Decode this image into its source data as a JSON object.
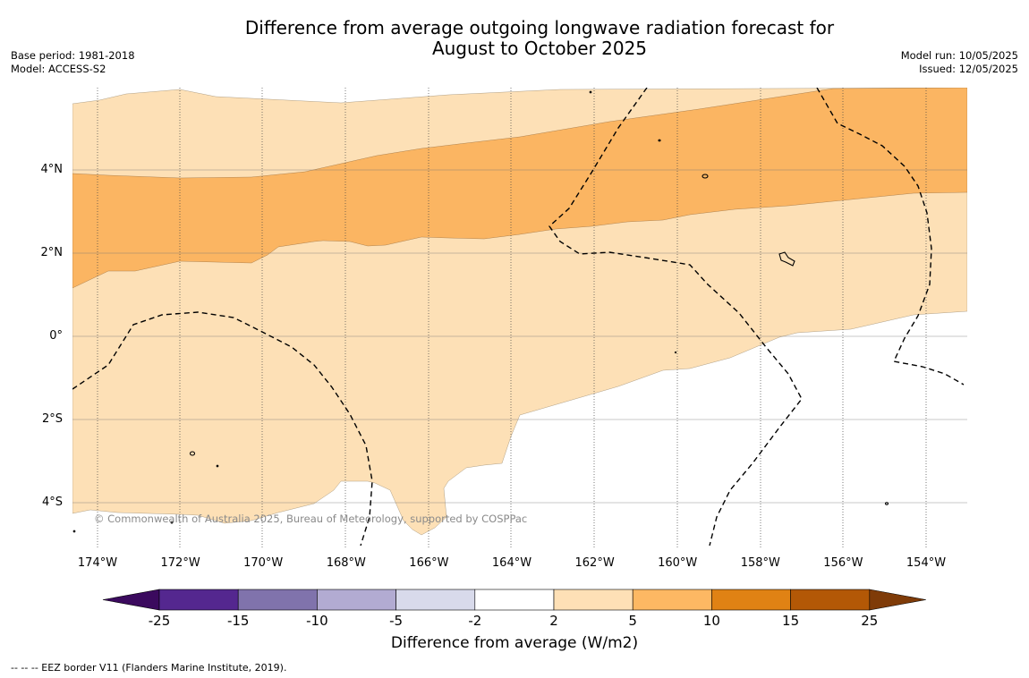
{
  "header": {
    "title_line1": "Difference from average outgoing longwave radiation forecast for",
    "title_line2": "August to October 2025",
    "base_period": "Base period: 1981-2018",
    "model": "Model: ACCESS-S2",
    "model_run": "Model run: 10/05/2025",
    "issued": "Issued: 12/05/2025"
  },
  "map": {
    "lat_labels": [
      "4°N",
      "2°N",
      "0°",
      "2°S",
      "4°S"
    ],
    "lon_labels": [
      "174°W",
      "172°W",
      "170°W",
      "168°W",
      "166°W",
      "164°W",
      "162°W",
      "160°W",
      "158°W",
      "156°W",
      "154°W"
    ],
    "copyright": "© Commonwealth of Australia 2025, Bureau of Meteorology, supported by COSPPac",
    "colors": {
      "light_orange": "#fde0b6",
      "medium_orange": "#fbb562",
      "background": "#ffffff"
    }
  },
  "colorbar": {
    "ticks": [
      "-25",
      "-15",
      "-10",
      "-5",
      "-2",
      "2",
      "5",
      "10",
      "15",
      "25"
    ],
    "colors": [
      "#3b0a5e",
      "#54278f",
      "#8073ac",
      "#b2abd2",
      "#d8daeb",
      "#ffffff",
      "#fee0b6",
      "#fdb863",
      "#e08214",
      "#b35806",
      "#7f3b08"
    ],
    "label": "Difference from average (W/m2)"
  },
  "footer": {
    "eez_legend": "--  --  -- EEZ border V11 (Flanders Marine Institute, 2019)."
  }
}
